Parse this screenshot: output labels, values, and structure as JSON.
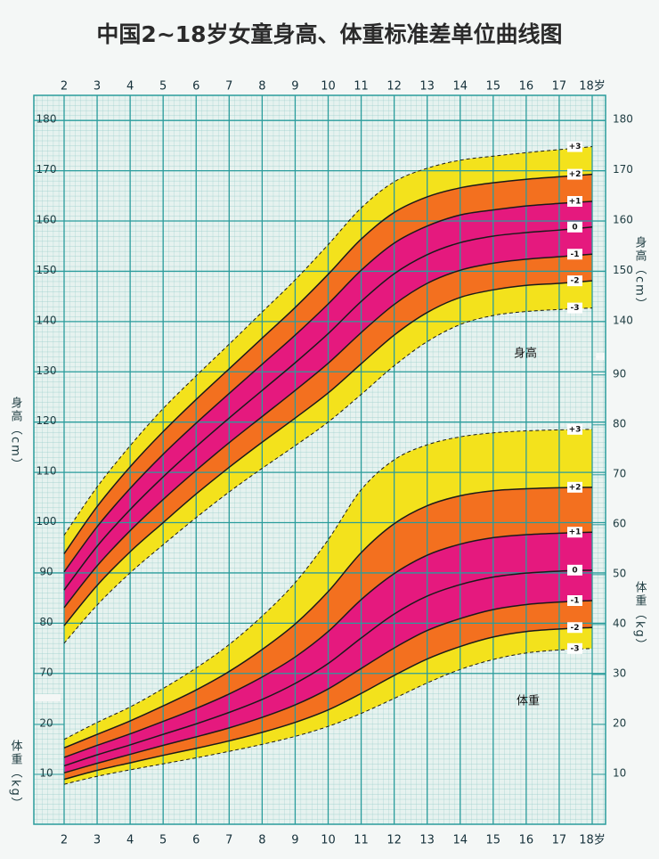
{
  "chart_data": {
    "type": "line",
    "title": "中国2~18岁女童身高、体重标准差单位曲线图",
    "y_label": "身高（cm）",
    "y2_label": "体重（kg）",
    "annotations": [
      "身高",
      "体重"
    ],
    "x": [
      2,
      3,
      4,
      5,
      6,
      7,
      8,
      9,
      10,
      11,
      12,
      13,
      14,
      15,
      16,
      17,
      18
    ],
    "xlim": [
      2,
      18
    ],
    "xticks": [
      2,
      3,
      4,
      5,
      6,
      7,
      8,
      9,
      10,
      11,
      12,
      13,
      14,
      15,
      16,
      17,
      {
        "value": 18,
        "label": "18岁"
      }
    ],
    "ylim": [
      40,
      185
    ],
    "yticks": [
      70,
      80,
      90,
      100,
      110,
      120,
      130,
      140,
      150,
      160,
      170,
      180
    ],
    "yticks_right": [
      140,
      150,
      160,
      170,
      180
    ],
    "y2lim": [
      0,
      146
    ],
    "y2ticks": [
      10,
      20,
      30,
      40,
      50,
      60,
      70,
      80,
      90
    ],
    "y2ticks_left": [
      10,
      20
    ],
    "grid": true,
    "grid_color": "#2a9c9c",
    "minor_grid_color": "#93cbc8",
    "background": "#e6f2ef",
    "band_colors": [
      "#f3e21c",
      "#f3701f",
      "#e5197e",
      "#e5197e",
      "#f3701f",
      "#f3e21c"
    ],
    "series": [
      {
        "name": "+3",
        "axis": "y",
        "dashed": true,
        "values": [
          97.5,
          107.1,
          115.3,
          122.7,
          129.2,
          135.5,
          141.9,
          148.3,
          155.3,
          162.6,
          167.8,
          170.5,
          172.1,
          172.9,
          173.6,
          174.2,
          174.8
        ]
      },
      {
        "name": "+2",
        "axis": "y",
        "dashed": false,
        "values": [
          93.8,
          103.2,
          111.1,
          118.1,
          124.5,
          130.6,
          136.7,
          142.8,
          149.4,
          156.4,
          161.7,
          164.8,
          166.6,
          167.6,
          168.3,
          168.8,
          169.3
        ]
      },
      {
        "name": "+1",
        "axis": "y",
        "dashed": false,
        "values": [
          90.2,
          99.2,
          106.8,
          113.6,
          119.8,
          125.7,
          131.5,
          137.3,
          143.5,
          150.2,
          155.6,
          159.0,
          161.2,
          162.2,
          163.0,
          163.5,
          163.9
        ]
      },
      {
        "name": "0",
        "axis": "y",
        "dashed": false,
        "values": [
          86.6,
          95.3,
          102.6,
          109.1,
          115.1,
          120.8,
          126.3,
          131.8,
          137.6,
          144.0,
          149.5,
          153.3,
          155.7,
          157.0,
          157.7,
          158.2,
          158.8
        ]
      },
      {
        "name": "-1",
        "axis": "y",
        "dashed": false,
        "values": [
          83.1,
          91.4,
          98.4,
          104.6,
          110.4,
          115.9,
          121.1,
          126.3,
          131.7,
          137.8,
          143.4,
          147.6,
          150.2,
          151.6,
          152.4,
          152.9,
          153.4
        ]
      },
      {
        "name": "-2",
        "axis": "y",
        "dashed": false,
        "values": [
          79.5,
          87.5,
          94.2,
          100.0,
          105.7,
          111.0,
          116.0,
          120.8,
          125.8,
          131.6,
          137.3,
          141.8,
          144.8,
          146.3,
          147.2,
          147.6,
          148.1
        ]
      },
      {
        "name": "-3",
        "axis": "y",
        "dashed": true,
        "values": [
          76.0,
          83.6,
          90.0,
          95.6,
          101.0,
          106.1,
          110.8,
          115.3,
          120.0,
          125.5,
          131.2,
          136.0,
          139.4,
          141.2,
          142.0,
          142.4,
          142.7
        ]
      },
      {
        "name": "+3",
        "axis": "y2",
        "dashed": true,
        "values": [
          17.0,
          20.4,
          23.5,
          27.2,
          31.3,
          36.0,
          41.7,
          48.4,
          57.0,
          67.0,
          73.0,
          76.0,
          77.6,
          78.4,
          78.8,
          79.0,
          79.1
        ]
      },
      {
        "name": "+2",
        "axis": "y2",
        "dashed": false,
        "values": [
          15.3,
          18.0,
          20.7,
          23.7,
          26.9,
          30.6,
          35.0,
          40.1,
          46.6,
          54.4,
          60.2,
          63.8,
          65.8,
          66.8,
          67.2,
          67.4,
          67.5
        ]
      },
      {
        "name": "+1",
        "axis": "y2",
        "dashed": false,
        "values": [
          13.4,
          15.8,
          18.1,
          20.6,
          23.2,
          26.1,
          29.5,
          33.5,
          38.6,
          45.0,
          50.2,
          53.9,
          56.1,
          57.4,
          58.0,
          58.3,
          58.5
        ]
      },
      {
        "name": "0",
        "axis": "y2",
        "dashed": false,
        "values": [
          11.7,
          13.9,
          15.9,
          18.0,
          20.1,
          22.4,
          25.0,
          28.2,
          32.2,
          37.3,
          42.1,
          45.7,
          48.0,
          49.5,
          50.3,
          50.7,
          50.9
        ]
      },
      {
        "name": "-1",
        "axis": "y2",
        "dashed": false,
        "values": [
          10.3,
          12.2,
          14.0,
          15.8,
          17.5,
          19.3,
          21.4,
          23.9,
          27.1,
          31.2,
          35.3,
          38.8,
          41.2,
          43.0,
          44.0,
          44.5,
          44.8
        ]
      },
      {
        "name": "-2",
        "axis": "y2",
        "dashed": false,
        "values": [
          9.0,
          10.8,
          12.3,
          13.8,
          15.2,
          16.7,
          18.4,
          20.4,
          22.9,
          26.2,
          29.8,
          33.1,
          35.6,
          37.5,
          38.6,
          39.1,
          39.4
        ]
      },
      {
        "name": "-3",
        "axis": "y2",
        "dashed": true,
        "values": [
          8.0,
          9.6,
          10.9,
          12.1,
          13.3,
          14.6,
          16.0,
          17.6,
          19.6,
          22.2,
          25.2,
          28.3,
          31.0,
          33.0,
          34.3,
          34.9,
          35.2
        ]
      }
    ]
  }
}
